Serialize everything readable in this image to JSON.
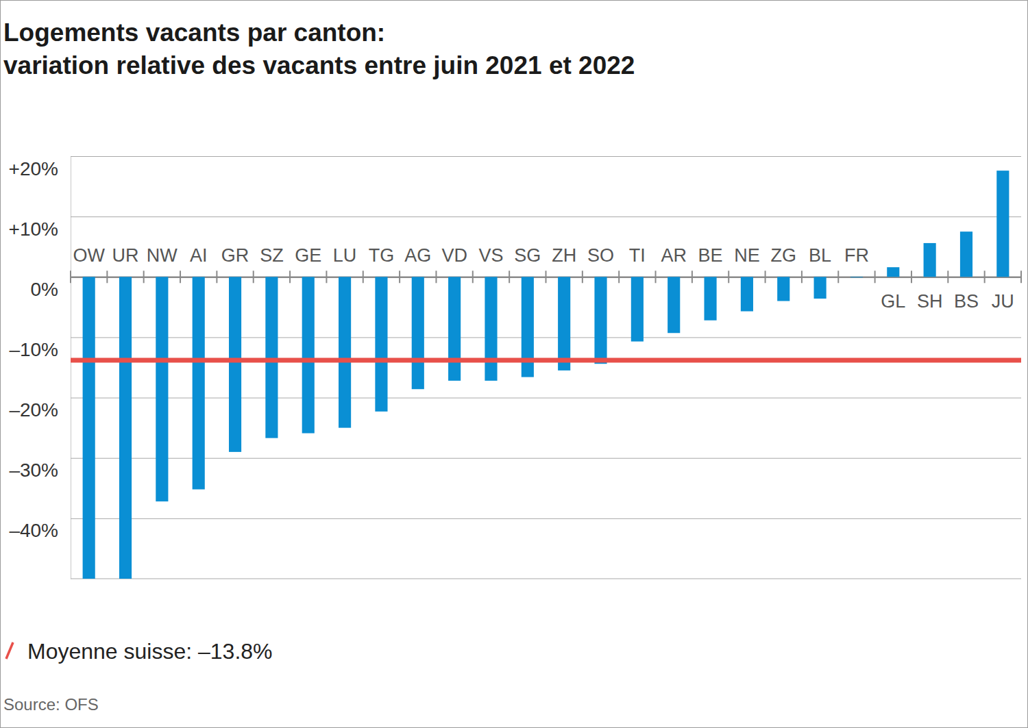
{
  "chart_data": {
    "type": "bar",
    "title": "Logements vacants par canton:",
    "subtitle": "variation relative des vacants entre juin 2021 et 2022",
    "categories": [
      "OW",
      "UR",
      "NW",
      "AI",
      "GR",
      "SZ",
      "GE",
      "LU",
      "TG",
      "AG",
      "VD",
      "VS",
      "SG",
      "ZH",
      "SO",
      "TI",
      "AR",
      "BE",
      "NE",
      "ZG",
      "BL",
      "FR",
      "GL",
      "SH",
      "BS",
      "JU"
    ],
    "values": [
      -50,
      -50,
      -37.2,
      -35.2,
      -29.0,
      -26.7,
      -25.9,
      -25.0,
      -22.3,
      -18.6,
      -17.2,
      -17.2,
      -16.6,
      -15.5,
      -14.4,
      -10.7,
      -9.3,
      -7.2,
      -5.7,
      -4.0,
      -3.6,
      -0.1,
      1.6,
      5.6,
      7.5,
      17.6
    ],
    "color": "#0a8fd4",
    "ylim": [
      -50,
      20
    ],
    "yticks": [
      {
        "value": -40,
        "label": "–40%"
      },
      {
        "value": -30,
        "label": "–30%"
      },
      {
        "value": -20,
        "label": "–20%"
      },
      {
        "value": -10,
        "label": "–10%"
      },
      {
        "value": 0,
        "label": "0%"
      },
      {
        "value": 10,
        "label": "+10%"
      },
      {
        "value": 20,
        "label": "+20%"
      }
    ],
    "grid": true,
    "reference_line": {
      "value": -13.8,
      "label": "Moyenne suisse: –13.8%",
      "color": "#e8504a"
    },
    "source": "Source: OFS"
  }
}
